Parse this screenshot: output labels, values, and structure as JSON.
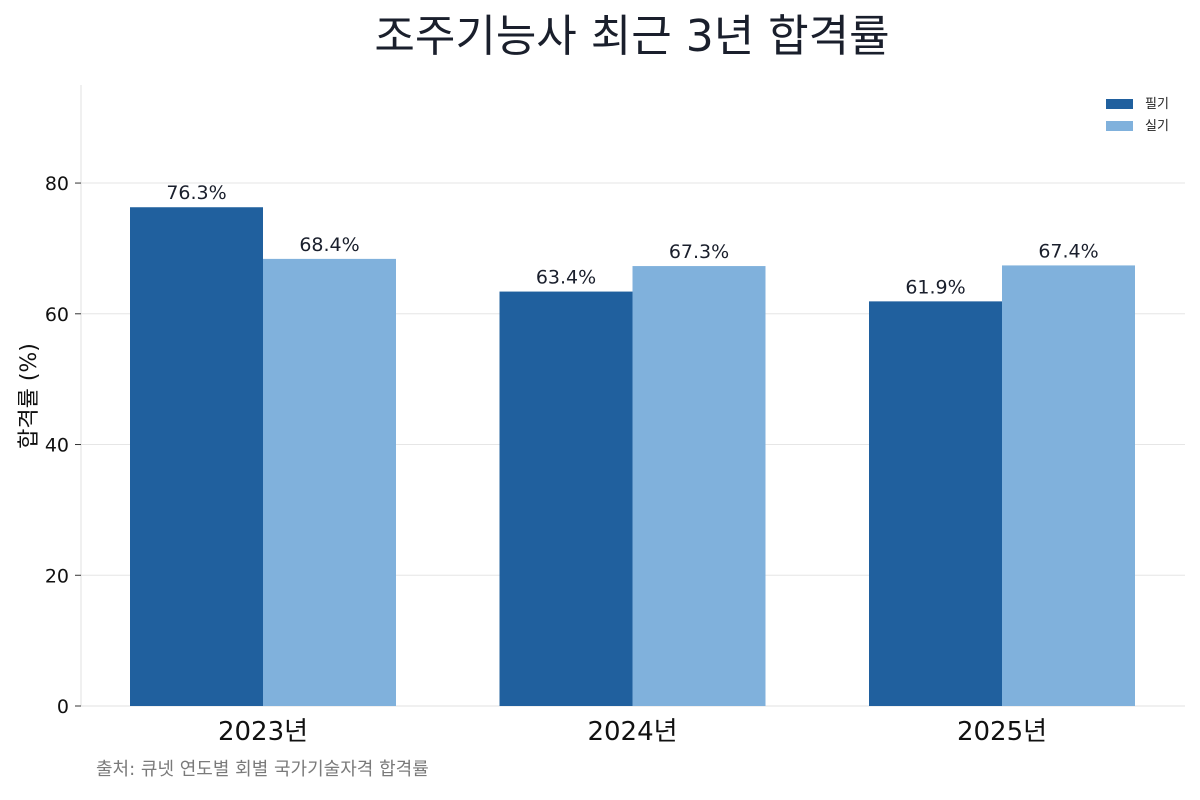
{
  "chart_data": {
    "type": "bar",
    "title": "조주기능사 최근 3년 합격률",
    "ylabel": "합격률 (%)",
    "categories": [
      "2023년",
      "2024년",
      "2025년"
    ],
    "series": [
      {
        "name": "필기",
        "values": [
          76.3,
          63.4,
          61.9
        ],
        "color": "#20609e",
        "labels": [
          "76.3%",
          "63.4%",
          "61.9%"
        ]
      },
      {
        "name": "실기",
        "values": [
          68.4,
          67.3,
          67.4
        ],
        "color": "#80b1dc",
        "labels": [
          "68.4%",
          "67.3%",
          "67.4%"
        ]
      }
    ],
    "ylim": [
      0,
      95
    ],
    "yticks": [
      0,
      20,
      40,
      60,
      80
    ],
    "grid": true,
    "legend_position": "top-right"
  },
  "source": "출처: 큐넷 연도별 회별 국가기술자격 합격률"
}
